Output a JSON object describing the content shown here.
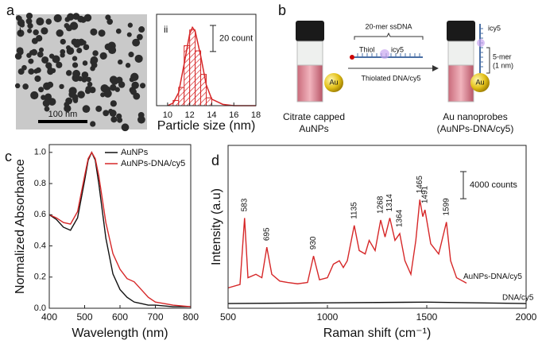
{
  "figure": {
    "panels": [
      "a",
      "b",
      "c",
      "d"
    ],
    "tem": {
      "label": "i",
      "scale": "100 nm"
    },
    "hist_label": "ii",
    "scheme": {
      "ssdna": "20-mer ssDNA",
      "thiol": "Thiol",
      "dye": "icy5",
      "reaction": "Thiolated DNA/cy5",
      "au": "Au",
      "left_caption": [
        "Citrate capped",
        "AuNPs"
      ],
      "right_caption": [
        "Au nanoprobes",
        "(AuNPs-DNA/cy5)"
      ],
      "probe_dye": "icy5",
      "length": [
        "5-mer",
        "(1 nm)"
      ],
      "probe_au": "Au"
    }
  },
  "chart_data": [
    {
      "type": "histogram",
      "xlabel": "Particle size (nm)",
      "color": "#d62728",
      "bins": [
        10.5,
        11,
        11.5,
        12,
        12.5,
        13,
        13.5,
        14
      ],
      "values": [
        4,
        14,
        46,
        58,
        42,
        24,
        6
      ],
      "xlim": [
        9,
        18
      ],
      "xticks": [
        10,
        12,
        14,
        16,
        18
      ],
      "ylim": [
        0,
        70
      ],
      "scale_bar": {
        "value": 20,
        "label": "20 count"
      },
      "fit": {
        "x": [
          10,
          10.5,
          11,
          11.5,
          12,
          12.25,
          12.5,
          13,
          13.5,
          14,
          15,
          16,
          18
        ],
        "values": [
          0,
          2,
          10,
          32,
          55,
          60,
          57,
          38,
          16,
          5,
          1,
          0,
          0
        ]
      }
    },
    {
      "type": "line",
      "xlabel": "Wavelength (nm)",
      "ylabel": "Normalized Absorbance",
      "x": [
        400,
        420,
        440,
        460,
        480,
        500,
        510,
        520,
        530,
        540,
        560,
        580,
        600,
        620,
        640,
        660,
        680,
        700,
        750,
        800
      ],
      "series": [
        {
          "name": "AuNPs",
          "color": "#111111",
          "values": [
            0.6,
            0.57,
            0.52,
            0.5,
            0.58,
            0.82,
            0.95,
            1.0,
            0.95,
            0.8,
            0.45,
            0.22,
            0.12,
            0.07,
            0.04,
            0.03,
            0.02,
            0.02,
            0.01,
            0.01
          ]
        },
        {
          "name": "AuNPs-DNA/cy5",
          "color": "#d62728",
          "values": [
            0.6,
            0.58,
            0.55,
            0.54,
            0.62,
            0.85,
            0.96,
            1.0,
            0.96,
            0.85,
            0.55,
            0.35,
            0.25,
            0.19,
            0.17,
            0.12,
            0.07,
            0.04,
            0.02,
            0.01
          ]
        }
      ],
      "xlim": [
        400,
        800
      ],
      "xticks": [
        400,
        500,
        600,
        700,
        800
      ],
      "ylim": [
        0,
        1.05
      ],
      "yticks": [
        {
          "value": 0,
          "label": "0.0"
        },
        0.2,
        0.4,
        0.6,
        0.8,
        {
          "value": 1,
          "label": "1.0"
        }
      ],
      "legend": "top-right"
    },
    {
      "type": "line",
      "xlabel": "Raman shift (cm⁻¹)",
      "ylabel": "Intensity (a.u)",
      "series": [
        {
          "name": "AuNPs-DNA/cy5",
          "color": "#d62728",
          "x": [
            500,
            560,
            583,
            600,
            640,
            670,
            695,
            720,
            760,
            800,
            850,
            900,
            930,
            960,
            1000,
            1030,
            1060,
            1080,
            1100,
            1135,
            1160,
            1190,
            1210,
            1240,
            1268,
            1290,
            1314,
            1340,
            1364,
            1390,
            1420,
            1445,
            1465,
            1480,
            1491,
            1520,
            1560,
            1599,
            1620,
            1650,
            1700
          ],
          "values": [
            3000,
            3500,
            13300,
            4500,
            5000,
            4500,
            9000,
            5000,
            4000,
            3800,
            3600,
            3800,
            7700,
            4200,
            4500,
            6500,
            7000,
            6000,
            7000,
            12200,
            8500,
            8000,
            10000,
            8500,
            13000,
            10500,
            13300,
            10000,
            11000,
            7000,
            5000,
            10000,
            16000,
            13500,
            14500,
            9500,
            8000,
            12700,
            7000,
            4500,
            3700
          ]
        },
        {
          "name": "DNA/cy5",
          "color": "#111111",
          "x": [
            500,
            1000,
            1500,
            2000
          ],
          "values": [
            700,
            800,
            900,
            700
          ]
        }
      ],
      "peaks": [
        583,
        695,
        930,
        1135,
        1268,
        1314,
        1364,
        1465,
        1491,
        1599
      ],
      "xlim": [
        500,
        2000
      ],
      "xticks": [
        500,
        1000,
        1500,
        2000
      ],
      "ylim": [
        0,
        24000
      ],
      "scale_bar": {
        "value": 4000,
        "label": "4000 counts"
      }
    }
  ]
}
